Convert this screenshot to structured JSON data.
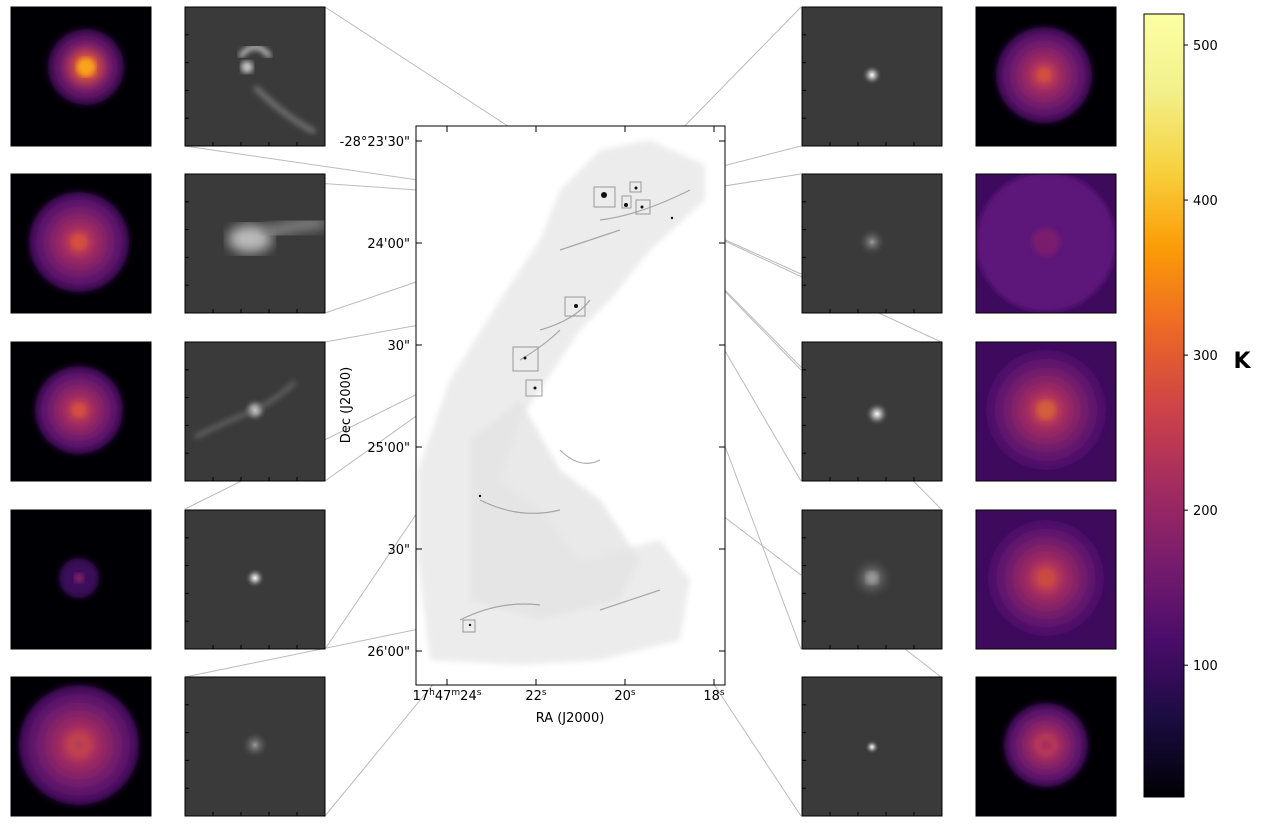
{
  "central_map": {
    "ra_axis_title": "RA (J2000)",
    "dec_axis_title": "Dec (J2000)",
    "ra_ticks": [
      {
        "label_parts": [
          "17",
          "h",
          "47",
          "m",
          "24",
          "s"
        ]
      },
      {
        "label_parts": [
          "22",
          "s"
        ]
      },
      {
        "label_parts": [
          "20",
          "s"
        ]
      },
      {
        "label_parts": [
          "18",
          "s"
        ]
      }
    ],
    "dec_ticks": [
      "-28°23'30\"",
      "24'00\"",
      "30\"",
      "25'00\"",
      "30\"",
      "26'00\""
    ]
  },
  "colorbar": {
    "label": "K",
    "colormap": "inferno",
    "min": 15,
    "max": 520,
    "ticks": [
      "100",
      "200",
      "300",
      "400",
      "500"
    ],
    "tick_values": [
      100,
      200,
      300,
      400,
      500
    ]
  },
  "zoom_panels": [
    {
      "id": "L1",
      "side": "left",
      "greyscale_style": "arc"
    },
    {
      "id": "L2",
      "side": "left",
      "greyscale_style": "blob"
    },
    {
      "id": "L3",
      "side": "left",
      "greyscale_style": "filaments"
    },
    {
      "id": "L4",
      "side": "left",
      "greyscale_style": "point"
    },
    {
      "id": "L5",
      "side": "left",
      "greyscale_style": "faint"
    },
    {
      "id": "R1",
      "side": "right",
      "greyscale_style": "point"
    },
    {
      "id": "R2",
      "side": "right",
      "greyscale_style": "faint"
    },
    {
      "id": "R3",
      "side": "right",
      "greyscale_style": "bright-point"
    },
    {
      "id": "R4",
      "side": "right",
      "greyscale_style": "diffuse"
    },
    {
      "id": "R5",
      "side": "right",
      "greyscale_style": "small-point"
    }
  ],
  "colors": {
    "connector": "#bbbbbb",
    "panel_bg_grey": "#3a3a3a",
    "panel_bg_dark": "#000004"
  }
}
